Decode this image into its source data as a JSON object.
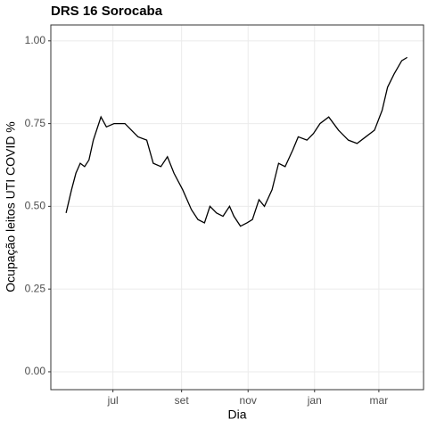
{
  "chart_data": {
    "type": "line",
    "title": "DRS 16 Sorocaba",
    "xlabel": "Dia",
    "ylabel": "Ocupação leitos UTI COVID %",
    "x": [
      139,
      144,
      148,
      152,
      156,
      160,
      164,
      171,
      176,
      183,
      193,
      199,
      205,
      213,
      219,
      226,
      232,
      238,
      246,
      254,
      260,
      266,
      271,
      277,
      283,
      289,
      293,
      299,
      305,
      310,
      316,
      321,
      328,
      334,
      340,
      347,
      352,
      360,
      366,
      372,
      380,
      389,
      398,
      406,
      414,
      422,
      429,
      434,
      440,
      447,
      452
    ],
    "series": [
      {
        "color": "#000000",
        "values": [
          0.48,
          0.55,
          0.6,
          0.63,
          0.62,
          0.64,
          0.7,
          0.77,
          0.74,
          0.75,
          0.75,
          0.73,
          0.71,
          0.7,
          0.63,
          0.62,
          0.65,
          0.6,
          0.55,
          0.49,
          0.46,
          0.45,
          0.5,
          0.48,
          0.47,
          0.5,
          0.47,
          0.44,
          0.45,
          0.46,
          0.52,
          0.5,
          0.55,
          0.63,
          0.62,
          0.67,
          0.71,
          0.7,
          0.72,
          0.75,
          0.77,
          0.73,
          0.7,
          0.69,
          0.71,
          0.73,
          0.79,
          0.86,
          0.9,
          0.94,
          0.95
        ]
      }
    ],
    "xlim": [
      125,
      467
    ],
    "xticks": [
      {
        "value": 182,
        "label": "jul"
      },
      {
        "value": 245,
        "label": "set"
      },
      {
        "value": 306,
        "label": "nov"
      },
      {
        "value": 367,
        "label": "jan"
      },
      {
        "value": 426,
        "label": "mar"
      }
    ],
    "ylim": [
      -0.054,
      1.048
    ],
    "yticks": [
      {
        "value": 0,
        "label": "0.00"
      },
      {
        "value": 0.25,
        "label": "0.25"
      },
      {
        "value": 0.5,
        "label": "0.50"
      },
      {
        "value": 0.75,
        "label": "0.75"
      },
      {
        "value": 1,
        "label": "1.00"
      }
    ],
    "grid": true
  }
}
